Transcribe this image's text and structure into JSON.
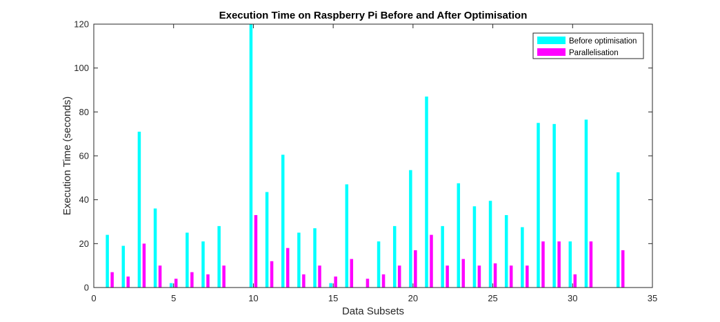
{
  "chart_data": {
    "type": "bar",
    "title": "Execution Time on Raspberry Pi Before and After Optimisation",
    "xlabel": "Data Subsets",
    "ylabel": "Execution Time (seconds)",
    "xlim": [
      0,
      35
    ],
    "ylim": [
      0,
      120
    ],
    "xticks": [
      0,
      5,
      10,
      15,
      20,
      25,
      30,
      35
    ],
    "yticks": [
      0,
      20,
      40,
      60,
      80,
      100,
      120
    ],
    "grid": false,
    "legend_position": "top-right",
    "x": [
      1,
      2,
      3,
      4,
      5,
      6,
      7,
      8,
      9,
      10,
      11,
      12,
      13,
      14,
      15,
      16,
      17,
      18,
      19,
      20,
      21,
      22,
      23,
      24,
      25,
      26,
      27,
      28,
      29,
      30,
      31,
      32,
      33
    ],
    "series": [
      {
        "name": "Before optimisation",
        "color": "#00FFFF",
        "values": [
          24,
          19,
          71,
          36,
          2,
          25,
          21,
          28,
          0,
          120,
          43.5,
          60.5,
          25,
          27,
          2,
          47,
          0,
          21,
          28,
          53.5,
          87,
          28,
          47.5,
          37,
          39.5,
          33,
          27.5,
          75,
          74.5,
          21,
          76.5,
          0,
          52.5
        ]
      },
      {
        "name": "Parallelisation",
        "color": "#FF00FF",
        "values": [
          7,
          5,
          20,
          10,
          4,
          7,
          6,
          10,
          0,
          33,
          12,
          18,
          6,
          10,
          5,
          13,
          4,
          6,
          10,
          17,
          24,
          10,
          13,
          10,
          11,
          10,
          10,
          21,
          21,
          6,
          21,
          0,
          17
        ]
      }
    ]
  }
}
